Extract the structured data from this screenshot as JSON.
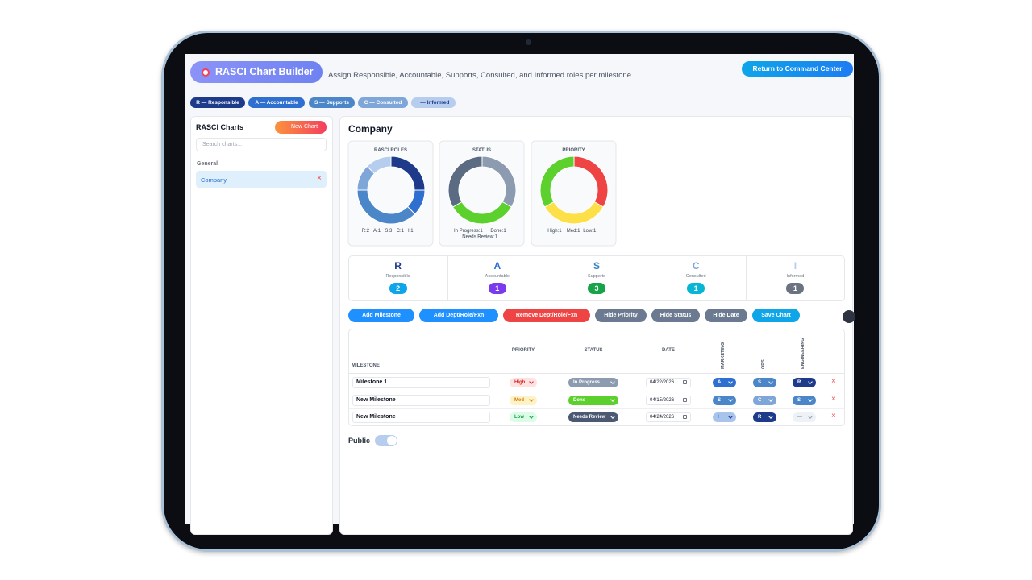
{
  "header": {
    "title": "RASCI Chart Builder",
    "subtitle": "Assign Responsible, Accountable, Supports, Consulted, and Informed roles per milestone",
    "return_button": "Return to Command Center"
  },
  "role_chips": [
    "R — Responsible",
    "A — Accountable",
    "S — Supports",
    "C — Consulted",
    "I — Informed"
  ],
  "sidebar": {
    "title": "RASCI Charts",
    "new_button": "New Chart",
    "search_placeholder": "Search charts...",
    "group_label": "General",
    "items": [
      "Company"
    ]
  },
  "main": {
    "title": "Company",
    "donuts": [
      {
        "title": "RASCI ROLES",
        "segments": [
          {
            "label": "R:2",
            "value": 2,
            "color": "#1e3a8a"
          },
          {
            "label": "A:1",
            "value": 1,
            "color": "#2f6fd0"
          },
          {
            "label": "S:3",
            "value": 3,
            "color": "#4a86c8"
          },
          {
            "label": "C:1",
            "value": 1,
            "color": "#7fa6d9"
          },
          {
            "label": "I:1",
            "value": 1,
            "color": "#b7cdee"
          }
        ]
      },
      {
        "title": "STATUS",
        "segments": [
          {
            "label": "In Progress:1",
            "value": 1,
            "color": "#8c9bb0"
          },
          {
            "label": "Done:1",
            "value": 1,
            "color": "#5cd12e"
          },
          {
            "label": "Needs Review:1",
            "value": 1,
            "color": "#5b6b82"
          }
        ]
      },
      {
        "title": "PRIORITY",
        "segments": [
          {
            "label": "High:1",
            "value": 1,
            "color": "#ef4444"
          },
          {
            "label": "Med:1",
            "value": 1,
            "color": "#fde047"
          },
          {
            "label": "Low:1",
            "value": 1,
            "color": "#5cd12e"
          }
        ]
      }
    ],
    "summary": [
      {
        "letter": "R",
        "label": "Responsible",
        "count": 2
      },
      {
        "letter": "A",
        "label": "Accountable",
        "count": 1
      },
      {
        "letter": "S",
        "label": "Supports",
        "count": 3
      },
      {
        "letter": "C",
        "label": "Consulted",
        "count": 1
      },
      {
        "letter": "I",
        "label": "Informed",
        "count": 1
      }
    ],
    "toolbar": [
      "Add Milestone",
      "Add Dept/Role/Fxn",
      "Remove Dept/Role/Fxn",
      "Hide Priority",
      "Hide Status",
      "Hide Date",
      "Save Chart"
    ],
    "table": {
      "columns": [
        "MILESTONE",
        "PRIORITY",
        "STATUS",
        "DATE",
        "MARKETING",
        "OPS",
        "ENGINEERING"
      ],
      "rows": [
        [
          "Milestone 1",
          "High",
          "In Progress",
          "04/22/2026",
          "A",
          "S",
          "R"
        ],
        [
          "New Milestone",
          "Med",
          "Done",
          "04/15/2026",
          "S",
          "C",
          "S"
        ],
        [
          "New Milestone",
          "Low",
          "Needs Review",
          "04/24/2026",
          "I",
          "R",
          "—"
        ]
      ]
    },
    "public_label": "Public"
  }
}
